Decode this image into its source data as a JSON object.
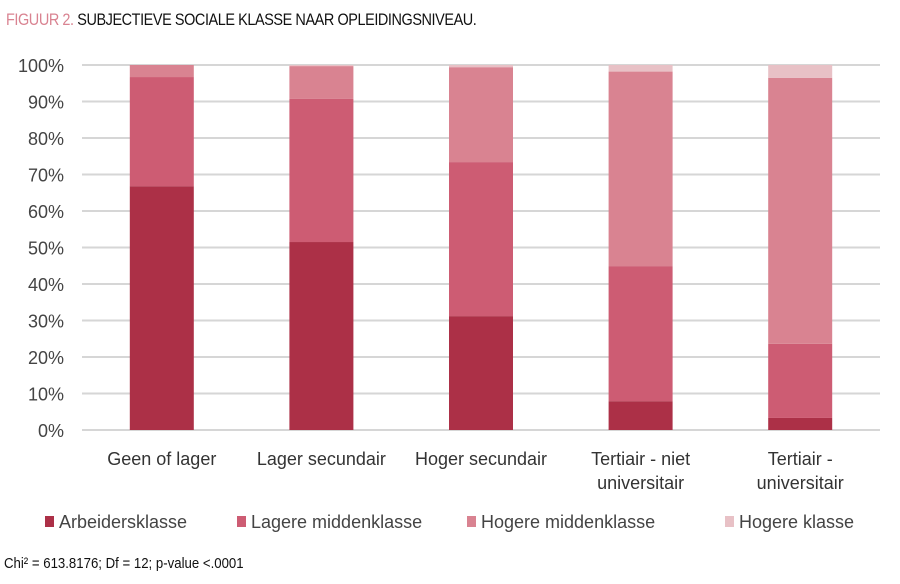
{
  "chart_data": {
    "type": "bar",
    "stacked": true,
    "title_prefix": "FIGUUR 2.",
    "title": "SUBJECTIEVE SOCIALE KLASSE NAAR OPLEIDINGSNIVEAU.",
    "categories": [
      [
        "Geen of lager"
      ],
      [
        "Lager secundair"
      ],
      [
        "Hoger secundair"
      ],
      [
        "Tertiair - niet",
        "universitair"
      ],
      [
        "Tertiair -",
        "universitair"
      ]
    ],
    "series": [
      {
        "name": "Arbeidersklasse",
        "color": "#ac3047",
        "values": [
          66.8,
          51.5,
          31.2,
          7.9,
          3.3
        ]
      },
      {
        "name": "Lagere middenklasse",
        "color": "#cd5c73",
        "values": [
          29.9,
          39.2,
          42.2,
          37.0,
          20.3
        ]
      },
      {
        "name": "Hogere middenklasse",
        "color": "#d98391",
        "values": [
          3.3,
          9.0,
          26.0,
          53.3,
          72.9
        ]
      },
      {
        "name": "Hogere klasse",
        "color": "#e8c1c6",
        "values": [
          0.0,
          0.3,
          0.6,
          1.8,
          3.5
        ]
      }
    ],
    "yticks": [
      "0%",
      "10%",
      "20%",
      "30%",
      "40%",
      "50%",
      "60%",
      "70%",
      "80%",
      "90%",
      "100%"
    ],
    "ylim": [
      0,
      100
    ],
    "grid": true,
    "legend_placement": "bottom",
    "note": "Chi² = 613.8176; Df = 12; p-value <.0001"
  }
}
